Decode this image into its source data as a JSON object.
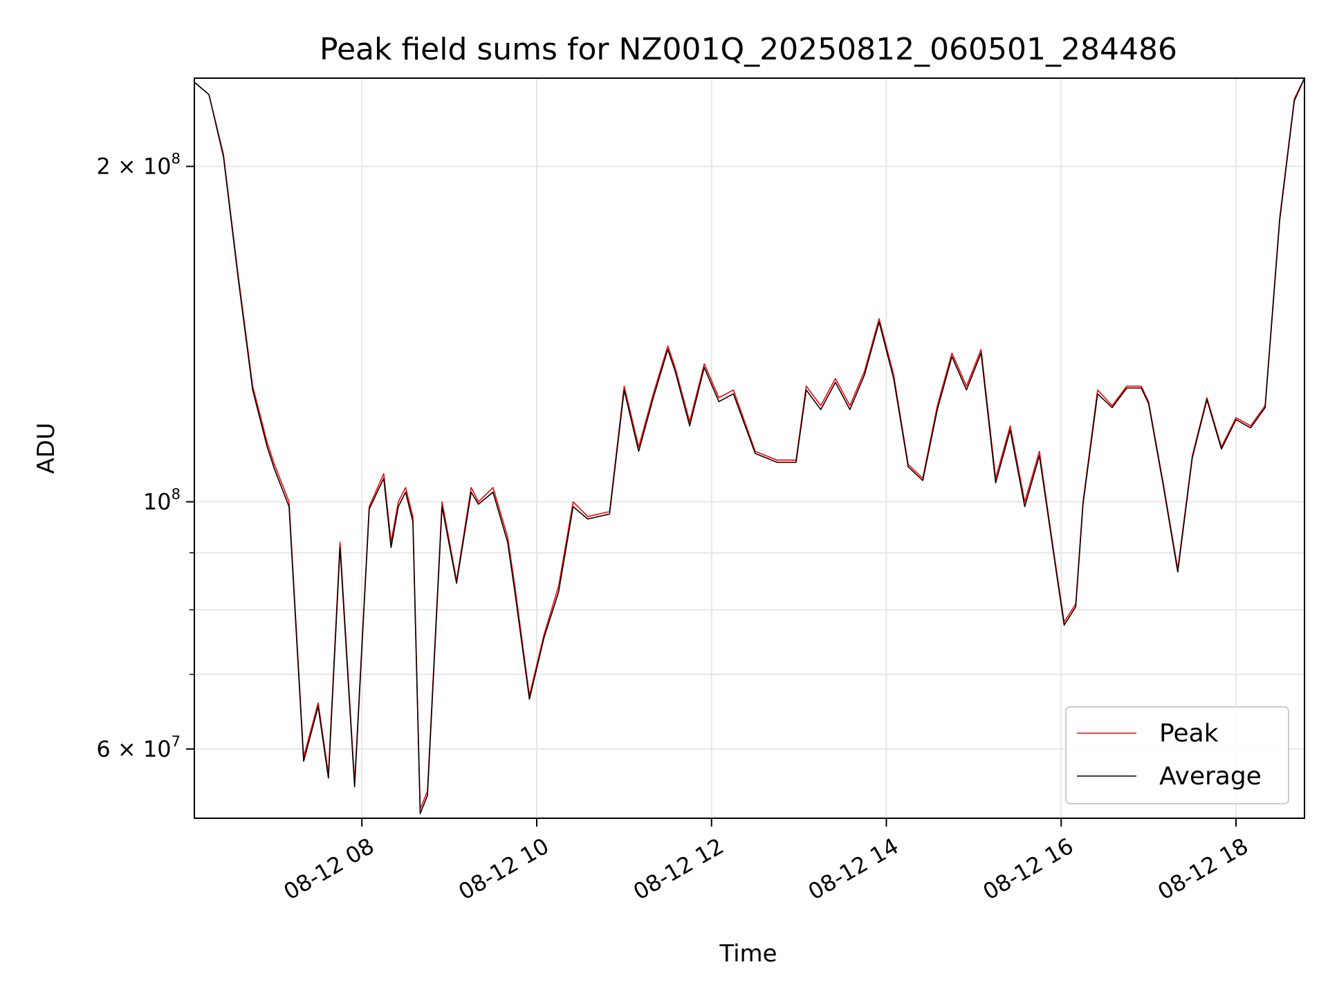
{
  "chart_data": {
    "type": "line",
    "title": "Peak field sums for NZ001Q_20250812_060501_284486",
    "xlabel": "Time",
    "ylabel": "ADU",
    "y_scale": "log",
    "ylim": [
      52000000,
      240000000
    ],
    "xlim": [
      "08-12 06:05",
      "08-12 18:47"
    ],
    "grid": true,
    "legend_placement": "lower-right",
    "x_ticks": [
      {
        "at": "08-12 08:00",
        "label": "08-12 08"
      },
      {
        "at": "08-12 10:00",
        "label": "08-12 10"
      },
      {
        "at": "08-12 12:00",
        "label": "08-12 12"
      },
      {
        "at": "08-12 14:00",
        "label": "08-12 14"
      },
      {
        "at": "08-12 16:00",
        "label": "08-12 16"
      },
      {
        "at": "08-12 18:00",
        "label": "08-12 18"
      }
    ],
    "y_ticks": [
      {
        "value": 200000000,
        "base": "2 × 10",
        "exp": "8"
      },
      {
        "value": 100000000,
        "base": "10",
        "exp": "8"
      },
      {
        "value": 60000000,
        "base": "6 × 10",
        "exp": "7"
      }
    ],
    "y_minor_ticks": [
      70000000,
      80000000,
      90000000
    ],
    "series": [
      {
        "name": "Peak",
        "color": "#ff0000",
        "x": [
          "08-12 06:05",
          "08-12 06:15",
          "08-12 06:25",
          "08-12 06:35",
          "08-12 06:45",
          "08-12 06:55",
          "08-12 07:00",
          "08-12 07:10",
          "08-12 07:20",
          "08-12 07:30",
          "08-12 07:37",
          "08-12 07:45",
          "08-12 07:55",
          "08-12 08:05",
          "08-12 08:15",
          "08-12 08:20",
          "08-12 08:25",
          "08-12 08:30",
          "08-12 08:35",
          "08-12 08:40",
          "08-12 08:45",
          "08-12 08:55",
          "08-12 09:05",
          "08-12 09:15",
          "08-12 09:20",
          "08-12 09:30",
          "08-12 09:40",
          "08-12 09:45",
          "08-12 09:55",
          "08-12 10:05",
          "08-12 10:15",
          "08-12 10:25",
          "08-12 10:35",
          "08-12 10:50",
          "08-12 11:00",
          "08-12 11:10",
          "08-12 11:20",
          "08-12 11:30",
          "08-12 11:35",
          "08-12 11:45",
          "08-12 11:55",
          "08-12 12:05",
          "08-12 12:15",
          "08-12 12:30",
          "08-12 12:45",
          "08-12 12:58",
          "08-12 13:05",
          "08-12 13:15",
          "08-12 13:25",
          "08-12 13:35",
          "08-12 13:45",
          "08-12 13:55",
          "08-12 14:05",
          "08-12 14:15",
          "08-12 14:25",
          "08-12 14:35",
          "08-12 14:45",
          "08-12 14:55",
          "08-12 15:05",
          "08-12 15:15",
          "08-12 15:25",
          "08-12 15:35",
          "08-12 15:45",
          "08-12 15:55",
          "08-12 16:02",
          "08-12 16:10",
          "08-12 16:15",
          "08-12 16:25",
          "08-12 16:35",
          "08-12 16:45",
          "08-12 16:55",
          "08-12 17:00",
          "08-12 17:10",
          "08-12 17:20",
          "08-12 17:30",
          "08-12 17:40",
          "08-12 17:50",
          "08-12 18:00",
          "08-12 18:10",
          "08-12 18:20",
          "08-12 18:30",
          "08-12 18:40",
          "08-12 18:47"
        ],
        "values": [
          238000000,
          232000000,
          205000000,
          160000000,
          127000000,
          113000000,
          108000000,
          100000000,
          59000000,
          66000000,
          57000000,
          92000000,
          56000000,
          99000000,
          106000000,
          92000000,
          100000000,
          103000000,
          97000000,
          53000000,
          55000000,
          100000000,
          85000000,
          103000000,
          100000000,
          103000000,
          93000000,
          84000000,
          67000000,
          76000000,
          84000000,
          100000000,
          97000000,
          98000000,
          127000000,
          112000000,
          125000000,
          138000000,
          132000000,
          118000000,
          133000000,
          124000000,
          126000000,
          111000000,
          109000000,
          109000000,
          127000000,
          122000000,
          129000000,
          122000000,
          131000000,
          146000000,
          130000000,
          108000000,
          105000000,
          122000000,
          136000000,
          127000000,
          137000000,
          105000000,
          117000000,
          100000000,
          111000000,
          90000000,
          78000000,
          81000000,
          100000000,
          126000000,
          122000000,
          127000000,
          127000000,
          123000000,
          104000000,
          87000000,
          110000000,
          124000000,
          112000000,
          119000000,
          117000000,
          122000000,
          180000000,
          230000000,
          240000000
        ]
      },
      {
        "name": "Average",
        "color": "#000000",
        "x": [
          "08-12 06:05",
          "08-12 06:15",
          "08-12 06:25",
          "08-12 06:35",
          "08-12 06:45",
          "08-12 06:55",
          "08-12 07:00",
          "08-12 07:10",
          "08-12 07:20",
          "08-12 07:30",
          "08-12 07:37",
          "08-12 07:45",
          "08-12 07:55",
          "08-12 08:05",
          "08-12 08:15",
          "08-12 08:20",
          "08-12 08:25",
          "08-12 08:30",
          "08-12 08:35",
          "08-12 08:40",
          "08-12 08:45",
          "08-12 08:55",
          "08-12 09:05",
          "08-12 09:15",
          "08-12 09:20",
          "08-12 09:30",
          "08-12 09:40",
          "08-12 09:45",
          "08-12 09:55",
          "08-12 10:05",
          "08-12 10:15",
          "08-12 10:25",
          "08-12 10:35",
          "08-12 10:50",
          "08-12 11:00",
          "08-12 11:10",
          "08-12 11:20",
          "08-12 11:30",
          "08-12 11:35",
          "08-12 11:45",
          "08-12 11:55",
          "08-12 12:05",
          "08-12 12:15",
          "08-12 12:30",
          "08-12 12:45",
          "08-12 12:58",
          "08-12 13:05",
          "08-12 13:15",
          "08-12 13:25",
          "08-12 13:35",
          "08-12 13:45",
          "08-12 13:55",
          "08-12 14:05",
          "08-12 14:15",
          "08-12 14:25",
          "08-12 14:35",
          "08-12 14:45",
          "08-12 14:55",
          "08-12 15:05",
          "08-12 15:15",
          "08-12 15:25",
          "08-12 15:35",
          "08-12 15:45",
          "08-12 15:55",
          "08-12 16:02",
          "08-12 16:10",
          "08-12 16:15",
          "08-12 16:25",
          "08-12 16:35",
          "08-12 16:45",
          "08-12 16:55",
          "08-12 17:00",
          "08-12 17:10",
          "08-12 17:20",
          "08-12 17:30",
          "08-12 17:40",
          "08-12 17:50",
          "08-12 18:00",
          "08-12 18:10",
          "08-12 18:20",
          "08-12 18:30",
          "08-12 18:40",
          "08-12 18:47"
        ],
        "values": [
          238000000,
          232000000,
          204000000,
          159000000,
          126000000,
          112000000,
          107000000,
          99000000,
          58500000,
          65500000,
          56500000,
          91000000,
          55500000,
          98500000,
          105000000,
          91000000,
          99000000,
          102000000,
          96000000,
          52500000,
          54500000,
          99000000,
          84500000,
          102000000,
          99500000,
          102000000,
          92000000,
          83000000,
          66500000,
          75500000,
          83000000,
          99000000,
          96500000,
          97500000,
          126000000,
          111000000,
          124000000,
          137000000,
          131000000,
          117000000,
          132000000,
          123000000,
          125000000,
          110500000,
          108500000,
          108500000,
          126000000,
          121000000,
          128000000,
          121000000,
          130000000,
          145000000,
          129000000,
          107500000,
          104500000,
          121000000,
          135000000,
          126000000,
          136000000,
          104000000,
          116000000,
          99000000,
          110000000,
          89500000,
          77500000,
          80500000,
          99500000,
          125000000,
          121500000,
          126500000,
          126500000,
          122500000,
          103500000,
          86500000,
          109500000,
          123500000,
          111500000,
          118500000,
          116500000,
          121500000,
          179000000,
          229000000,
          240000000
        ]
      }
    ]
  }
}
